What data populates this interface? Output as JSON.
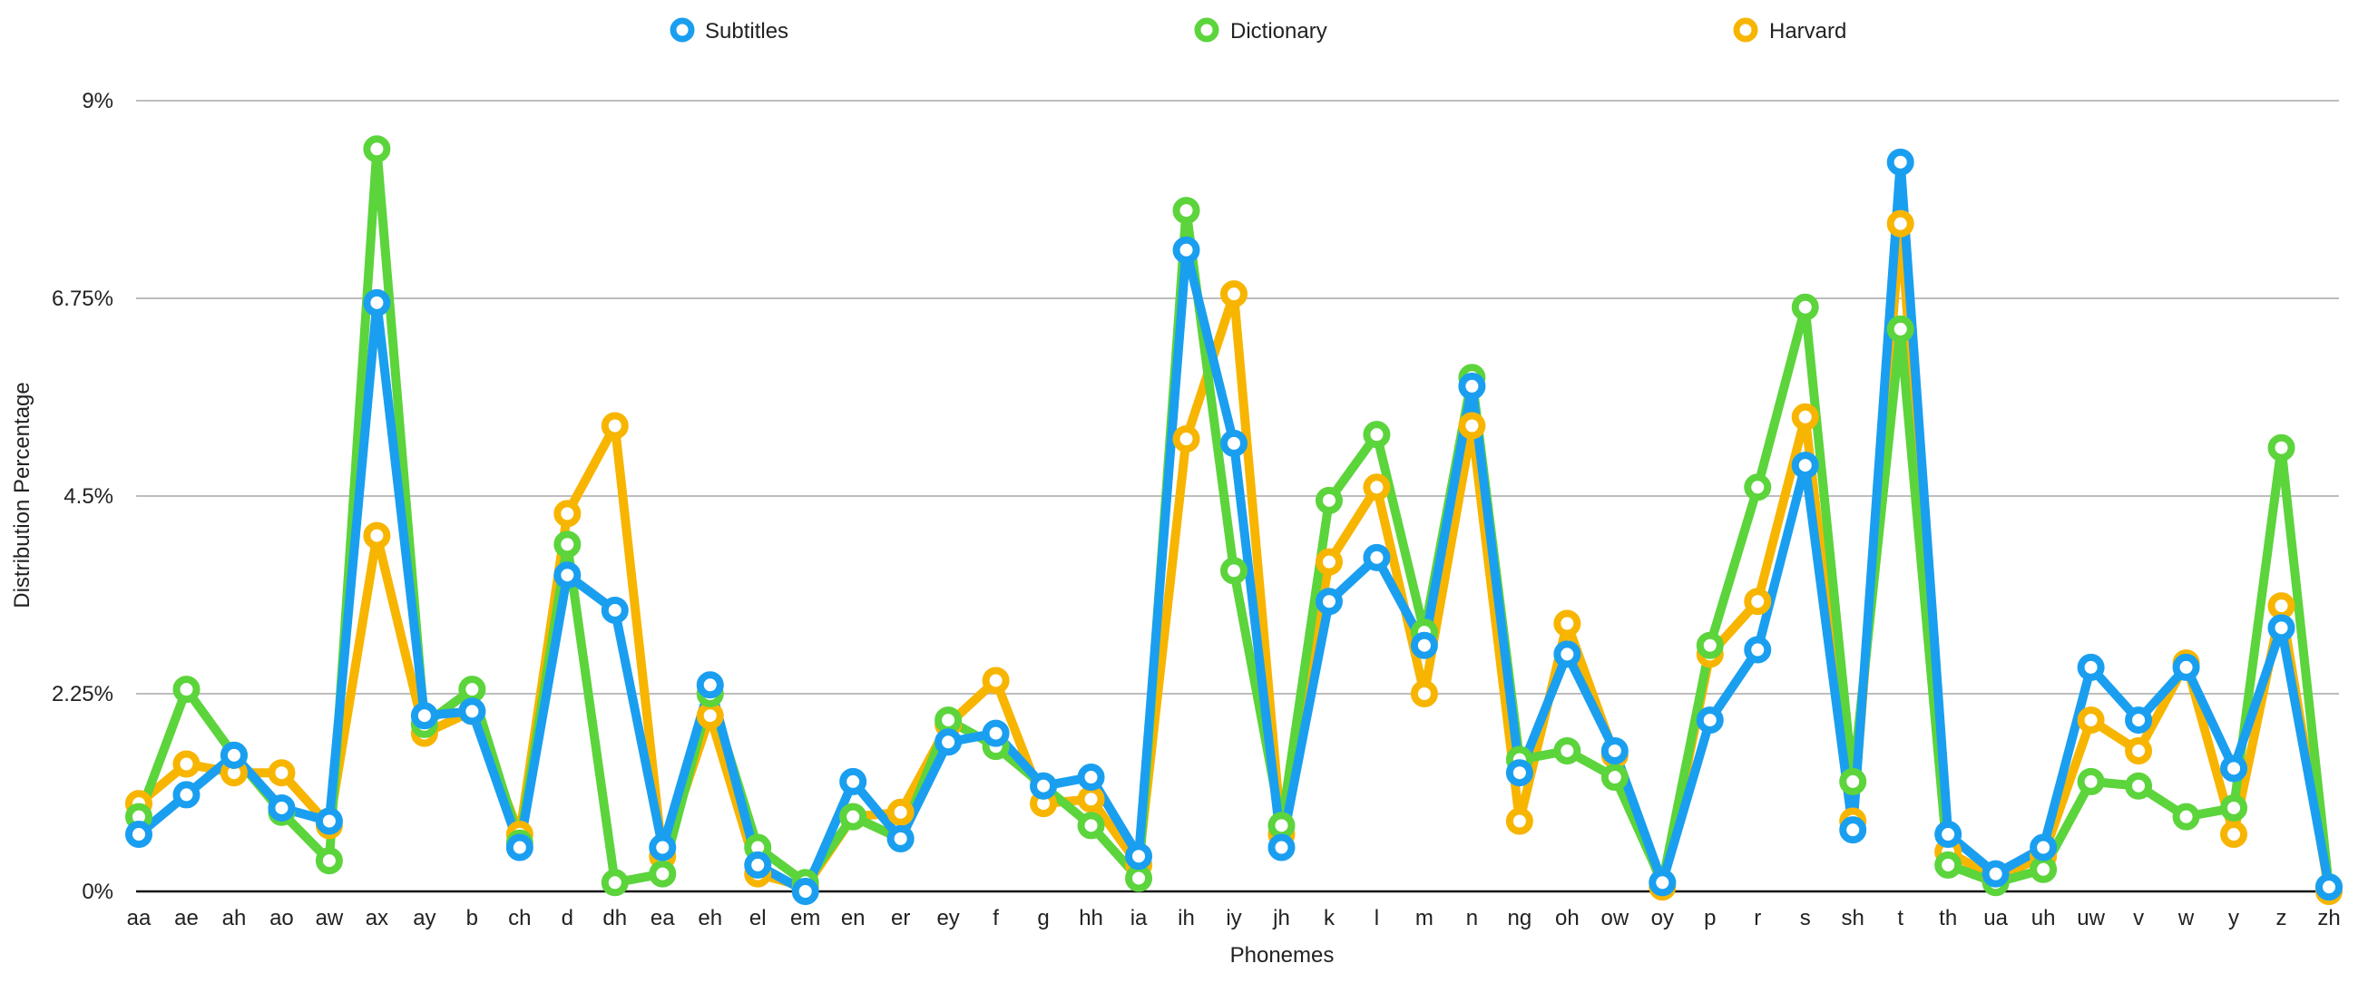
{
  "chart_data": {
    "type": "line",
    "title": "",
    "xlabel": "Phonemes",
    "ylabel": "Distribution Percentage",
    "ylim": [
      0,
      9
    ],
    "y_ticks": [
      "0%",
      "2.25%",
      "4.5%",
      "6.75%",
      "9%"
    ],
    "y_tick_values": [
      0,
      2.25,
      4.5,
      6.75,
      9
    ],
    "grid": true,
    "legend_position": "top",
    "categories": [
      "aa",
      "ae",
      "ah",
      "ao",
      "aw",
      "ax",
      "ay",
      "b",
      "ch",
      "d",
      "dh",
      "ea",
      "eh",
      "el",
      "em",
      "en",
      "er",
      "ey",
      "f",
      "g",
      "hh",
      "ia",
      "ih",
      "iy",
      "jh",
      "k",
      "l",
      "m",
      "n",
      "ng",
      "oh",
      "ow",
      "oy",
      "p",
      "r",
      "s",
      "sh",
      "t",
      "th",
      "ua",
      "uh",
      "uw",
      "v",
      "w",
      "y",
      "z",
      "zh"
    ],
    "series": [
      {
        "name": "Harvard",
        "color": "#F7B500",
        "values": [
          1.0,
          1.45,
          1.35,
          1.35,
          0.75,
          4.05,
          1.8,
          2.05,
          0.65,
          4.3,
          5.3,
          0.4,
          2.0,
          0.2,
          0.05,
          0.85,
          0.9,
          1.9,
          2.4,
          1.0,
          1.05,
          0.3,
          5.15,
          6.8,
          0.65,
          3.75,
          4.6,
          2.25,
          5.3,
          0.8,
          3.05,
          1.55,
          0.05,
          2.7,
          3.3,
          5.4,
          0.8,
          7.6,
          0.45,
          0.15,
          0.4,
          1.95,
          1.6,
          2.6,
          0.65,
          3.25,
          0.0
        ]
      },
      {
        "name": "Dictionary",
        "color": "#5CD43C",
        "values": [
          0.85,
          2.3,
          1.55,
          0.9,
          0.35,
          8.45,
          1.9,
          2.3,
          0.55,
          3.95,
          0.1,
          0.2,
          2.25,
          0.5,
          0.1,
          0.85,
          0.6,
          1.95,
          1.65,
          1.2,
          0.75,
          0.15,
          7.75,
          3.65,
          0.75,
          4.45,
          5.2,
          2.95,
          5.85,
          1.5,
          1.6,
          1.3,
          0.1,
          2.8,
          4.6,
          6.65,
          1.25,
          6.4,
          0.3,
          0.1,
          0.25,
          1.25,
          1.2,
          0.85,
          0.95,
          5.05,
          0.05
        ]
      },
      {
        "name": "Subtitles",
        "color": "#1A9FF0",
        "values": [
          0.65,
          1.1,
          1.55,
          0.95,
          0.8,
          6.7,
          2.0,
          2.05,
          0.5,
          3.6,
          3.2,
          0.5,
          2.35,
          0.3,
          0.0,
          1.25,
          0.6,
          1.7,
          1.8,
          1.2,
          1.3,
          0.4,
          7.3,
          5.1,
          0.5,
          3.3,
          3.8,
          2.8,
          5.75,
          1.35,
          2.7,
          1.6,
          0.1,
          1.95,
          2.75,
          4.85,
          0.7,
          8.3,
          0.65,
          0.2,
          0.5,
          2.55,
          1.95,
          2.55,
          1.4,
          3.0,
          0.05
        ]
      }
    ]
  },
  "legend": {
    "items": [
      {
        "label": "Subtitles",
        "color": "#1A9FF0"
      },
      {
        "label": "Dictionary",
        "color": "#5CD43C"
      },
      {
        "label": "Harvard",
        "color": "#F7B500"
      }
    ]
  }
}
